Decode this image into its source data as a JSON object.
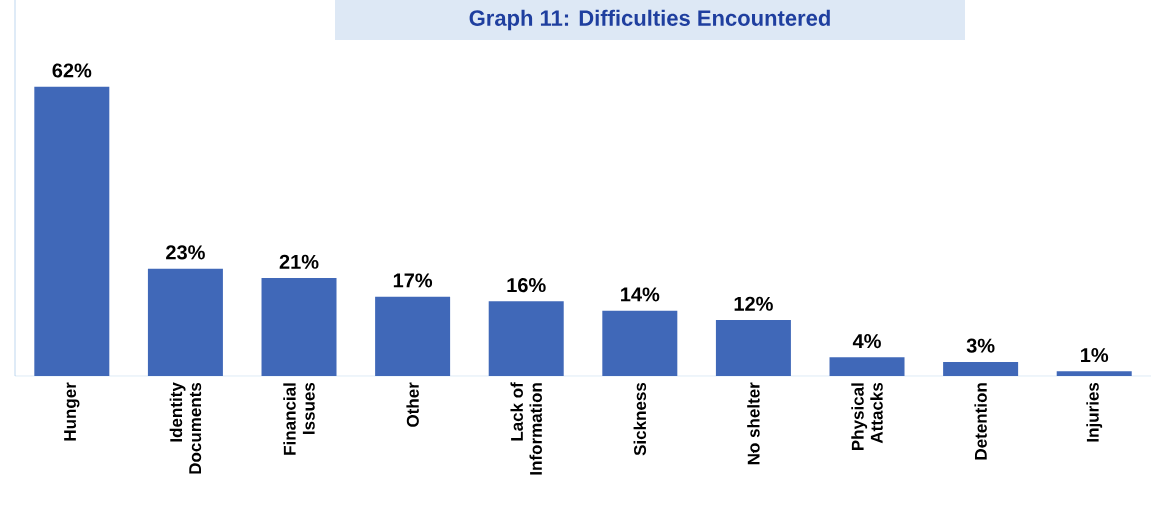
{
  "chart_data": {
    "type": "bar",
    "title": "Graph 11: Difficulties Encountered",
    "categories": [
      "Hunger",
      "Identity Documents",
      "Financial Issues",
      "Other",
      "Lack of Information",
      "Sickness",
      "No shelter",
      "Physical Attacks",
      "Detention",
      "Injuries"
    ],
    "values": [
      62,
      23,
      21,
      17,
      16,
      14,
      12,
      4,
      3,
      1
    ],
    "value_labels": [
      "62%",
      "23%",
      "21%",
      "17%",
      "16%",
      "14%",
      "12%",
      "4%",
      "3%",
      "1%"
    ],
    "color": "#4068b8"
  }
}
